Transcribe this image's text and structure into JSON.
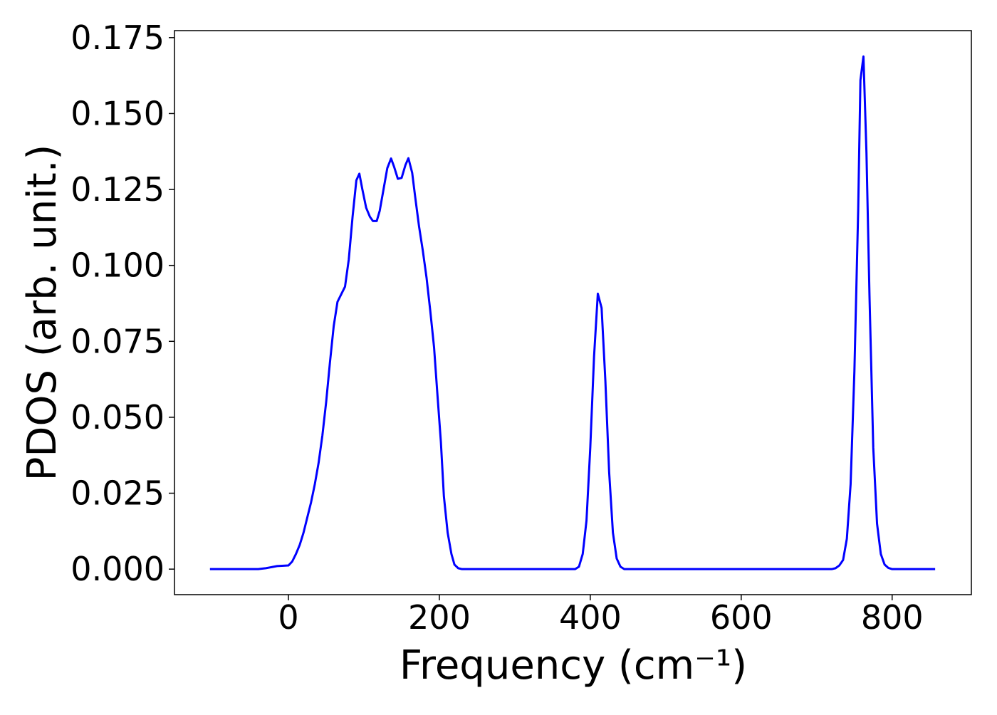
{
  "chart_data": {
    "type": "line",
    "xlabel": "Frequency (cm⁻¹)",
    "ylabel": "PDOS (arb. unit.)",
    "xlim": [
      -151,
      905
    ],
    "ylim": [
      -0.0084,
      0.1773
    ],
    "xticks": [
      0,
      200,
      400,
      600,
      800
    ],
    "yticks": [
      {
        "value": 0,
        "label": "0.000"
      },
      {
        "value": 0.025,
        "label": "0.025"
      },
      {
        "value": 0.05,
        "label": "0.050"
      },
      {
        "value": 0.075,
        "label": "0.075"
      },
      {
        "value": 0.1,
        "label": "0.100"
      },
      {
        "value": 0.125,
        "label": "0.125"
      },
      {
        "value": 0.15,
        "label": "0.150"
      },
      {
        "value": 0.175,
        "label": "0.175"
      }
    ],
    "grid": false,
    "x": [
      -104,
      -40,
      -30,
      -15,
      0,
      5,
      10,
      15,
      20,
      25,
      30,
      35,
      40,
      45,
      50,
      55,
      60,
      65,
      70,
      75,
      80,
      85,
      90,
      94,
      98,
      103,
      108,
      112,
      117,
      121,
      126,
      131,
      136,
      140,
      145,
      150,
      155,
      159,
      164,
      168,
      173,
      178,
      183,
      188,
      193,
      197,
      202,
      206,
      211,
      216,
      220,
      225,
      230,
      380,
      385,
      390,
      395,
      400,
      405,
      410,
      415,
      420,
      425,
      430,
      435,
      440,
      445,
      720,
      725,
      730,
      735,
      740,
      745,
      750,
      755,
      758,
      762,
      766,
      770,
      775,
      780,
      785,
      790,
      795,
      800,
      857
    ],
    "series": [
      {
        "name": "PDOS",
        "color": "#0000ff",
        "values": [
          0,
          0,
          0.0003,
          0.001,
          0.0012,
          0.0025,
          0.005,
          0.008,
          0.012,
          0.017,
          0.022,
          0.028,
          0.035,
          0.044,
          0.055,
          0.068,
          0.08,
          0.088,
          0.0905,
          0.093,
          0.102,
          0.116,
          0.128,
          0.1302,
          0.125,
          0.119,
          0.116,
          0.1146,
          0.1146,
          0.118,
          0.125,
          0.132,
          0.1352,
          0.1325,
          0.1285,
          0.1288,
          0.133,
          0.1353,
          0.1305,
          0.1225,
          0.113,
          0.105,
          0.096,
          0.085,
          0.073,
          0.059,
          0.042,
          0.024,
          0.012,
          0.005,
          0.0015,
          0.0003,
          0,
          0,
          0.0008,
          0.005,
          0.016,
          0.04,
          0.07,
          0.0907,
          0.086,
          0.062,
          0.032,
          0.012,
          0.0035,
          0.0008,
          0,
          0,
          0.0003,
          0.0012,
          0.003,
          0.01,
          0.028,
          0.065,
          0.118,
          0.161,
          0.1688,
          0.137,
          0.09,
          0.04,
          0.015,
          0.005,
          0.0015,
          0.0004,
          0,
          0
        ]
      }
    ]
  }
}
